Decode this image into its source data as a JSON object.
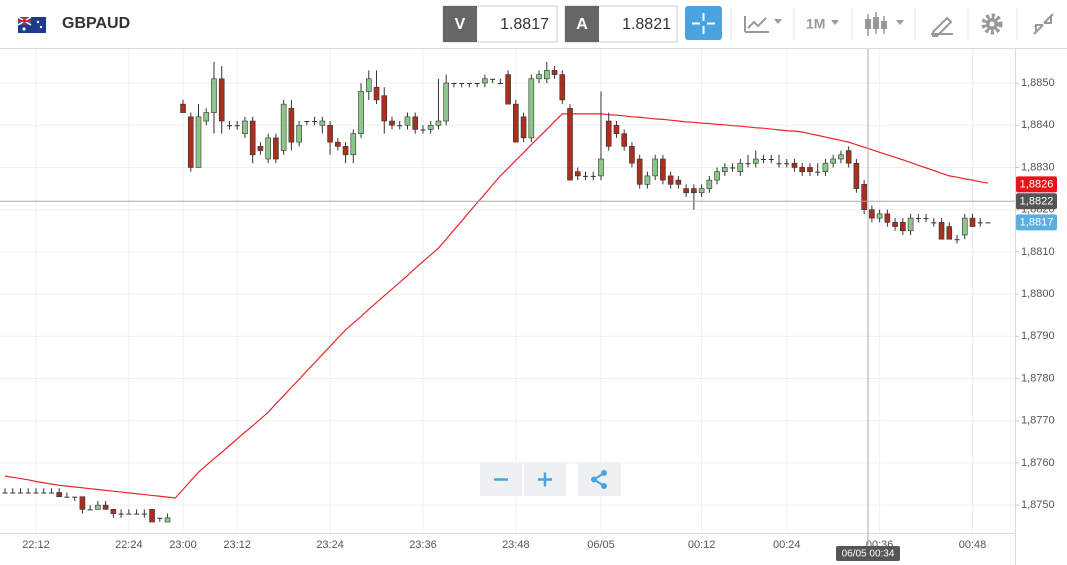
{
  "toolbar": {
    "symbol": "GBPAUD",
    "sell_label": "V",
    "sell_price": "1.8817",
    "buy_label": "A",
    "buy_price": "1.8821",
    "interval": "1M"
  },
  "chart_data": {
    "type": "candlestick",
    "categories": [
      null,
      null,
      null,
      null,
      "22:12",
      null,
      null,
      null,
      null,
      null,
      null,
      null,
      null,
      null,
      null,
      null,
      "22:24",
      null,
      null,
      null,
      null,
      null,
      null,
      "23:00",
      null,
      null,
      null,
      null,
      null,
      null,
      "23:12",
      null,
      null,
      null,
      null,
      null,
      null,
      null,
      null,
      null,
      null,
      null,
      "23:24",
      null,
      null,
      null,
      null,
      null,
      null,
      null,
      null,
      null,
      null,
      null,
      "23:36",
      null,
      null,
      null,
      null,
      null,
      null,
      null,
      null,
      null,
      null,
      null,
      "23:48",
      null,
      null,
      null,
      null,
      null,
      null,
      null,
      null,
      null,
      null,
      "06/05",
      null,
      null,
      null,
      null,
      null,
      null,
      null,
      null,
      null,
      null,
      null,
      null,
      "00:12",
      null,
      null,
      null,
      null,
      null,
      null,
      null,
      null,
      null,
      null,
      "00:24",
      null,
      null,
      null,
      null,
      null,
      null,
      null,
      null,
      null,
      null,
      null,
      "00:36",
      null,
      null,
      null,
      null,
      null,
      null,
      null,
      null,
      null,
      null,
      null,
      "00:48",
      null,
      null
    ],
    "candles": [
      [
        1.8753,
        1.8754,
        1.8753,
        1.8753
      ],
      [
        1.8753,
        1.8754,
        1.8753,
        1.8753
      ],
      [
        1.8753,
        1.8754,
        1.8753,
        1.8753
      ],
      [
        1.8753,
        1.8754,
        1.8753,
        1.8753
      ],
      [
        1.8753,
        1.8754,
        1.8753,
        1.8753
      ],
      [
        1.8753,
        1.8754,
        1.8753,
        1.8753
      ],
      [
        1.8753,
        1.8754,
        1.8753,
        1.8753
      ],
      [
        1.8753,
        1.8754,
        1.8752,
        1.8752
      ],
      [
        1.8752,
        1.8753,
        1.8752,
        1.8752
      ],
      [
        1.8752,
        1.8752,
        1.8751,
        1.8752
      ],
      [
        1.8752,
        1.8752,
        1.8748,
        1.8749
      ],
      [
        1.8749,
        1.875,
        1.8749,
        1.8749
      ],
      [
        1.8749,
        1.8751,
        1.8749,
        1.875
      ],
      [
        1.875,
        1.8751,
        1.8749,
        1.8749
      ],
      [
        1.8749,
        1.8749,
        1.8747,
        1.8748
      ],
      [
        1.8748,
        1.8749,
        1.8747,
        1.8748
      ],
      [
        1.8748,
        1.8749,
        1.8748,
        1.8748
      ],
      [
        1.8748,
        1.8749,
        1.8748,
        1.8748
      ],
      [
        1.8748,
        1.8749,
        1.8747,
        1.8748
      ],
      [
        1.8749,
        1.8749,
        1.8746,
        1.8746
      ],
      [
        1.8747,
        1.8747,
        1.8746,
        1.8747
      ],
      [
        1.8746,
        1.8748,
        1.8746,
        1.8747
      ],
      null,
      [
        1.8845,
        1.8846,
        1.8843,
        1.8843
      ],
      [
        1.8842,
        1.8843,
        1.8829,
        1.883
      ],
      [
        1.883,
        1.8845,
        1.883,
        1.8842
      ],
      [
        1.8841,
        1.8844,
        1.884,
        1.8843
      ],
      [
        1.8843,
        1.8855,
        1.8838,
        1.8851
      ],
      [
        1.8851,
        1.8854,
        1.8838,
        1.8841
      ],
      [
        1.884,
        1.8841,
        1.8839,
        1.884
      ],
      [
        1.884,
        1.8841,
        1.8839,
        1.884
      ],
      [
        1.8838,
        1.8842,
        1.8837,
        1.8841
      ],
      [
        1.8841,
        1.8842,
        1.8831,
        1.8833
      ],
      [
        1.8835,
        1.8836,
        1.8833,
        1.8834
      ],
      [
        1.8832,
        1.8838,
        1.8831,
        1.8837
      ],
      [
        1.8837,
        1.8838,
        1.8831,
        1.8832
      ],
      [
        1.8834,
        1.8846,
        1.8833,
        1.8845
      ],
      [
        1.8844,
        1.8846,
        1.8834,
        1.8836
      ],
      [
        1.8836,
        1.8841,
        1.8835,
        1.884
      ],
      [
        1.8841,
        1.8841,
        1.884,
        1.8841
      ],
      [
        1.8841,
        1.8842,
        1.884,
        1.8841
      ],
      [
        1.884,
        1.8842,
        1.8838,
        1.8841
      ],
      [
        1.884,
        1.8841,
        1.8833,
        1.8836
      ],
      [
        1.8836,
        1.8837,
        1.8834,
        1.8835
      ],
      [
        1.8835,
        1.8836,
        1.8831,
        1.8833
      ],
      [
        1.8833,
        1.8839,
        1.8831,
        1.8838
      ],
      [
        1.8838,
        1.885,
        1.8837,
        1.8848
      ],
      [
        1.8848,
        1.8853,
        1.8846,
        1.8851
      ],
      [
        1.8849,
        1.8853,
        1.8845,
        1.8846
      ],
      [
        1.8847,
        1.8849,
        1.8838,
        1.8841
      ],
      [
        1.8841,
        1.8842,
        1.8839,
        1.884
      ],
      [
        1.884,
        1.8841,
        1.8839,
        1.884
      ],
      [
        1.884,
        1.8843,
        1.8839,
        1.8842
      ],
      [
        1.8842,
        1.8843,
        1.8838,
        1.8839
      ],
      [
        1.8839,
        1.884,
        1.8838,
        1.8839
      ],
      [
        1.8839,
        1.8841,
        1.8838,
        1.884
      ],
      [
        1.884,
        1.8851,
        1.8839,
        1.8841
      ],
      [
        1.8841,
        1.8852,
        1.884,
        1.885
      ],
      [
        1.885,
        1.885,
        1.8849,
        1.885
      ],
      [
        1.885,
        1.885,
        1.8849,
        1.885
      ],
      [
        1.885,
        1.885,
        1.8849,
        1.885
      ],
      [
        1.885,
        1.885,
        1.8849,
        1.885
      ],
      [
        1.885,
        1.8852,
        1.8849,
        1.8851
      ],
      [
        1.8851,
        1.8851,
        1.885,
        1.8851
      ],
      [
        1.885,
        1.8851,
        1.885,
        1.885
      ],
      [
        1.8852,
        1.8853,
        1.8845,
        1.8845
      ],
      [
        1.8845,
        1.8846,
        1.8836,
        1.8836
      ],
      [
        1.8842,
        1.8843,
        1.8836,
        1.8837
      ],
      [
        1.8837,
        1.8852,
        1.8836,
        1.8851
      ],
      [
        1.8851,
        1.8853,
        1.885,
        1.8852
      ],
      [
        1.8851,
        1.8855,
        1.885,
        1.8853
      ],
      [
        1.8853,
        1.8854,
        1.8851,
        1.8852
      ],
      [
        1.8852,
        1.8853,
        1.8845,
        1.8846
      ],
      [
        1.8844,
        1.8845,
        1.8827,
        1.8827
      ],
      [
        1.8829,
        1.883,
        1.8827,
        1.8828
      ],
      [
        1.8828,
        1.8829,
        1.8827,
        1.8828
      ],
      [
        1.8828,
        1.8829,
        1.8827,
        1.8828
      ],
      [
        1.8828,
        1.8848,
        1.8827,
        1.8832
      ],
      [
        1.8841,
        1.8843,
        1.8834,
        1.8835
      ],
      [
        1.884,
        1.8841,
        1.8837,
        1.8838
      ],
      [
        1.8838,
        1.8839,
        1.8834,
        1.8835
      ],
      [
        1.8835,
        1.8836,
        1.883,
        1.8831
      ],
      [
        1.8832,
        1.8833,
        1.8825,
        1.8826
      ],
      [
        1.8826,
        1.8829,
        1.8825,
        1.8828
      ],
      [
        1.8828,
        1.8833,
        1.8827,
        1.8832
      ],
      [
        1.8832,
        1.8833,
        1.8826,
        1.8827
      ],
      [
        1.8828,
        1.8829,
        1.8825,
        1.8826
      ],
      [
        1.8827,
        1.8828,
        1.8825,
        1.8826
      ],
      [
        1.8825,
        1.8826,
        1.8823,
        1.8824
      ],
      [
        1.8825,
        1.8826,
        1.882,
        1.8824
      ],
      [
        1.8824,
        1.8826,
        1.8823,
        1.8825
      ],
      [
        1.8825,
        1.8828,
        1.8824,
        1.8827
      ],
      [
        1.8827,
        1.883,
        1.8826,
        1.8829
      ],
      [
        1.8829,
        1.8831,
        1.8828,
        1.883
      ],
      [
        1.883,
        1.8831,
        1.8829,
        1.883
      ],
      [
        1.8829,
        1.8832,
        1.8828,
        1.8831
      ],
      [
        1.8831,
        1.8833,
        1.883,
        1.8831
      ],
      [
        1.8831,
        1.8834,
        1.883,
        1.8832
      ],
      [
        1.8832,
        1.8833,
        1.8831,
        1.8832
      ],
      [
        1.8832,
        1.8833,
        1.8831,
        1.8832
      ],
      [
        1.8831,
        1.8833,
        1.883,
        1.8831
      ],
      [
        1.8831,
        1.8832,
        1.883,
        1.8831
      ],
      [
        1.8831,
        1.8832,
        1.8829,
        1.883
      ],
      [
        1.883,
        1.8831,
        1.8828,
        1.8829
      ],
      [
        1.883,
        1.8831,
        1.8828,
        1.8829
      ],
      [
        1.8829,
        1.8831,
        1.8828,
        1.8829
      ],
      [
        1.8829,
        1.8832,
        1.8828,
        1.8831
      ],
      [
        1.8831,
        1.8833,
        1.883,
        1.8832
      ],
      [
        1.8832,
        1.8834,
        1.8831,
        1.8833
      ],
      [
        1.8834,
        1.8835,
        1.883,
        1.8831
      ],
      [
        1.8831,
        1.8832,
        1.8824,
        1.8825
      ],
      [
        1.8826,
        1.8827,
        1.8819,
        1.882
      ],
      [
        1.882,
        1.8821,
        1.8817,
        1.8818
      ],
      [
        1.8818,
        1.882,
        1.8817,
        1.8819
      ],
      [
        1.8819,
        1.882,
        1.8816,
        1.8817
      ],
      [
        1.8817,
        1.8818,
        1.8815,
        1.8816
      ],
      [
        1.8817,
        1.8818,
        1.8814,
        1.8815
      ],
      [
        1.8815,
        1.8819,
        1.8814,
        1.8818
      ],
      [
        1.8818,
        1.8819,
        1.8817,
        1.8818
      ],
      [
        1.8818,
        1.8819,
        1.8817,
        1.8818
      ],
      [
        1.8817,
        1.8818,
        1.8816,
        1.8817
      ],
      [
        1.8817,
        1.8818,
        1.8813,
        1.8813
      ],
      [
        1.8816,
        1.8817,
        1.8813,
        1.8813
      ],
      [
        1.8813,
        1.8814,
        1.8812,
        1.8813
      ],
      [
        1.8814,
        1.8819,
        1.8813,
        1.8818
      ],
      [
        1.8818,
        1.8819,
        1.8816,
        1.8816
      ],
      [
        1.8817,
        1.8818,
        1.8816,
        1.8817
      ],
      [
        1.8817,
        1.8817,
        1.8817,
        1.8817
      ]
    ],
    "up_color": "#8cc78a",
    "down_color": "#a8301f",
    "ma": {
      "color": "#e8262b",
      "values": [
        1.87569,
        1.87566,
        1.87563,
        1.8756,
        1.87556,
        1.87553,
        1.8755,
        1.87547,
        1.87545,
        1.87543,
        1.87541,
        1.87539,
        1.87537,
        1.87535,
        1.87533,
        1.87531,
        1.87529,
        1.87527,
        1.87525,
        1.87523,
        1.87521,
        1.87519,
        1.87517,
        1.87537,
        1.87558,
        1.87578,
        1.87594,
        1.8761,
        1.87625,
        1.87641,
        1.87657,
        1.87673,
        1.87688,
        1.87704,
        1.8772,
        1.8774,
        1.87759,
        1.87779,
        1.87798,
        1.87818,
        1.87837,
        1.87857,
        1.87876,
        1.87896,
        1.87915,
        1.87931,
        1.87947,
        1.87964,
        1.8798,
        1.87996,
        1.88012,
        1.88028,
        1.88044,
        1.88061,
        1.88077,
        1.88093,
        1.88109,
        1.8813,
        1.88152,
        1.88173,
        1.88195,
        1.88216,
        1.88237,
        1.88259,
        1.8828,
        1.88298,
        1.88317,
        1.88335,
        1.88354,
        1.88372,
        1.8839,
        1.88409,
        1.88427,
        1.88427,
        1.88427,
        1.88427,
        1.88427,
        1.88427,
        1.88425,
        1.88424,
        1.88422,
        1.8842,
        1.88419,
        1.88417,
        1.88415,
        1.88414,
        1.88412,
        1.8841,
        1.88408,
        1.88407,
        1.88405,
        1.88404,
        1.88402,
        1.88401,
        1.88399,
        1.88398,
        1.88396,
        1.88394,
        1.88393,
        1.88391,
        1.88389,
        1.88387,
        1.88386,
        1.88384,
        1.8838,
        1.88376,
        1.88372,
        1.88368,
        1.88364,
        1.8836,
        1.88354,
        1.88348,
        1.88342,
        1.88336,
        1.8833,
        1.88324,
        1.88318,
        1.88312,
        1.88305,
        1.88299,
        1.88293,
        1.88286,
        1.8828,
        1.88277,
        1.88273,
        1.8827,
        1.88266,
        1.88263
      ]
    },
    "ylim": [
      1.87434,
      1.88583
    ],
    "yticks": [
      {
        "value": 1.875,
        "label": "1,8750"
      },
      {
        "value": 1.876,
        "label": "1,8760"
      },
      {
        "value": 1.877,
        "label": "1,8770"
      },
      {
        "value": 1.878,
        "label": "1,8780"
      },
      {
        "value": 1.879,
        "label": "1,8790"
      },
      {
        "value": 1.88,
        "label": "1,8800"
      },
      {
        "value": 1.881,
        "label": "1,8810"
      },
      {
        "value": 1.882,
        "label": "1,8820"
      },
      {
        "value": 1.883,
        "label": "1,8830"
      },
      {
        "value": 1.884,
        "label": "1,8840"
      },
      {
        "value": 1.885,
        "label": "1,8850"
      }
    ],
    "grid": true,
    "price_labels": [
      {
        "value": 1.8826,
        "label": "1,8826",
        "color": "#e8141a"
      },
      {
        "value": 1.8817,
        "label": "1,8817",
        "color": "#5aaee0"
      }
    ],
    "crosshair_price": {
      "value": 1.8822,
      "label": "1,8822",
      "color": "#555555"
    },
    "crosshair_label": "06/05 00:34"
  }
}
